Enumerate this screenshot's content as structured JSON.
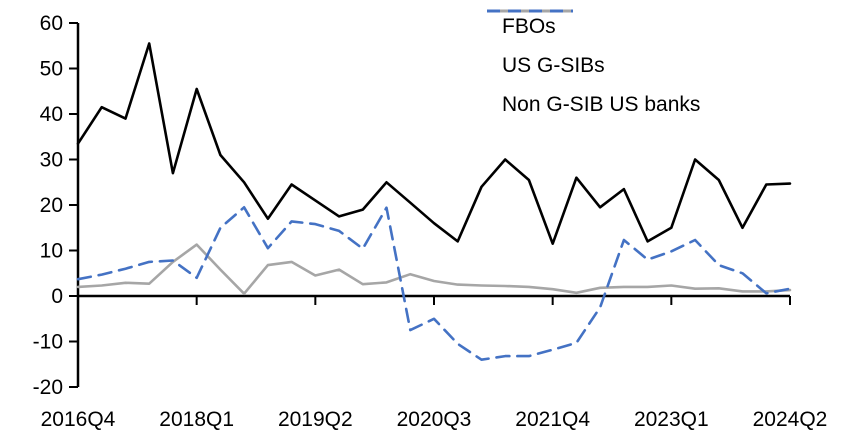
{
  "chart_data": {
    "type": "line",
    "title": "",
    "xlabel": "",
    "ylabel": "",
    "ylim": [
      -20,
      60
    ],
    "y_ticks": [
      60,
      50,
      40,
      30,
      20,
      10,
      0,
      -10,
      -20
    ],
    "x_tick_labels": [
      "2016Q4",
      "2018Q1",
      "2019Q2",
      "2020Q3",
      "2021Q4",
      "2023Q1",
      "2024Q2"
    ],
    "x_tick_indices": [
      0,
      5,
      10,
      15,
      20,
      25,
      30
    ],
    "grid": false,
    "legend_position": "top-right",
    "axis_color": "#000000",
    "categories": [
      "2016Q4",
      "2017Q1",
      "2017Q2",
      "2017Q3",
      "2017Q4",
      "2018Q1",
      "2018Q2",
      "2018Q3",
      "2018Q4",
      "2019Q1",
      "2019Q2",
      "2019Q3",
      "2019Q4",
      "2020Q1",
      "2020Q2",
      "2020Q3",
      "2020Q4",
      "2021Q1",
      "2021Q2",
      "2021Q3",
      "2021Q4",
      "2022Q1",
      "2022Q2",
      "2022Q3",
      "2022Q4",
      "2023Q1",
      "2023Q2",
      "2023Q3",
      "2023Q4",
      "2024Q1",
      "2024Q2"
    ],
    "series": [
      {
        "name": "FBOs",
        "color": "#000000",
        "dash": "solid",
        "values": [
          33.5,
          41.5,
          39,
          55.5,
          27,
          45.5,
          31,
          25,
          17,
          24.5,
          21,
          17.5,
          19,
          25,
          20.5,
          16,
          12,
          24,
          30,
          25.5,
          11.5,
          26,
          19.5,
          23.5,
          12,
          15,
          30,
          25.5,
          15,
          24.5,
          24.7
        ]
      },
      {
        "name": "US G-SIBs",
        "color": "#A6A6A6",
        "dash": "solid",
        "values": [
          2,
          2.3,
          2.9,
          2.7,
          7.5,
          11.3,
          5.8,
          0.5,
          6.8,
          7.5,
          4.5,
          5.8,
          2.6,
          3,
          4.8,
          3.3,
          2.5,
          2.3,
          2.2,
          2,
          1.5,
          0.7,
          1.8,
          2,
          2,
          2.3,
          1.6,
          1.7,
          1,
          1,
          1.3
        ]
      },
      {
        "name": "Non G-SIB US banks",
        "color": "#4472C4",
        "dash": "dashed",
        "values": [
          3.7,
          4.7,
          6,
          7.5,
          7.8,
          4,
          15,
          19.5,
          10.5,
          16.4,
          15.8,
          14.3,
          10.4,
          19.4,
          -7.5,
          -5,
          -10.5,
          -14,
          -13.2,
          -13.2,
          -11.8,
          -10.3,
          -2.5,
          12.3,
          8,
          9.8,
          12.3,
          6.8,
          5,
          0.6,
          1.6
        ]
      }
    ]
  }
}
